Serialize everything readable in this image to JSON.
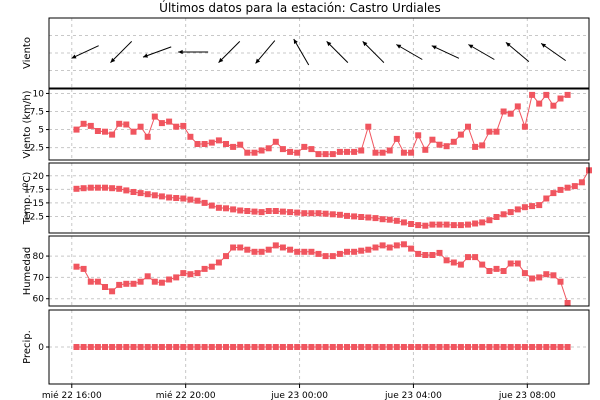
{
  "title": "Últimos datos para la estación: Castro Urdiales",
  "colors": {
    "series": "#f0555f",
    "arrow": "#000000",
    "grid": "#c8c8c8"
  },
  "chart_data": {
    "type": "line",
    "x_ticks": [
      {
        "label": "mié 22 16:00",
        "t": 0
      },
      {
        "label": "mié 22 20:00",
        "t": 240
      },
      {
        "label": "jue 23 00:00",
        "t": 480
      },
      {
        "label": "jue 23 04:00",
        "t": 720
      },
      {
        "label": "jue 23 08:00",
        "t": 960
      }
    ],
    "x_range_minutes": [
      -48,
      1090
    ],
    "x_start": "mié 22 16:10",
    "x_step_minutes": 15,
    "panels": [
      {
        "id": "viento-dir",
        "ylabel": "Viento",
        "type": "vector",
        "directions_deg": [
          245,
          225,
          250,
          270,
          225,
          220,
          330,
          315,
          315,
          300,
          295,
          300,
          310,
          305
        ]
      },
      {
        "id": "viento",
        "ylabel": "Viento (km/h)",
        "type": "line",
        "ylim": [
          1.2,
          10.2
        ],
        "yticks": [
          2.5,
          5,
          7.5,
          10
        ],
        "values": [
          5.0,
          5.8,
          5.5,
          4.8,
          4.7,
          4.3,
          5.8,
          5.7,
          4.7,
          5.4,
          4.0,
          6.8,
          5.9,
          6.1,
          5.4,
          5.5,
          4.0,
          3.0,
          3.0,
          3.2,
          3.5,
          3.0,
          2.6,
          2.9,
          1.8,
          1.8,
          2.1,
          2.4,
          3.3,
          2.3,
          1.9,
          1.8,
          2.6,
          2.3,
          1.6,
          1.6,
          1.6,
          1.9,
          1.9,
          1.9,
          2.1,
          5.4,
          1.8,
          1.8,
          2.1,
          3.7,
          1.8,
          1.8,
          4.2,
          2.2,
          3.6,
          2.9,
          2.7,
          3.3,
          4.3,
          5.4,
          2.6,
          2.8,
          4.7,
          4.7,
          7.5,
          7.2,
          8.2,
          5.4,
          9.8,
          8.6,
          9.8,
          8.3,
          9.3,
          9.8
        ]
      },
      {
        "id": "temp",
        "ylabel": "Temp. (ºC)",
        "type": "line",
        "ylim": [
          10,
          21.8
        ],
        "yticks": [
          12.5,
          15,
          17.5,
          20
        ],
        "values": [
          17.6,
          17.7,
          17.8,
          17.8,
          17.8,
          17.7,
          17.6,
          17.3,
          17.0,
          16.8,
          16.6,
          16.4,
          16.2,
          16.0,
          15.9,
          15.8,
          15.6,
          15.4,
          15.0,
          14.5,
          14.1,
          14.0,
          13.8,
          13.6,
          13.5,
          13.4,
          13.3,
          13.5,
          13.5,
          13.4,
          13.3,
          13.2,
          13.1,
          13.1,
          13.1,
          13.0,
          12.9,
          12.8,
          12.6,
          12.5,
          12.4,
          12.3,
          12.2,
          12.0,
          11.9,
          11.7,
          11.4,
          11.1,
          10.9,
          10.8,
          11.0,
          11.0,
          11.0,
          10.9,
          10.9,
          11.0,
          11.2,
          11.4,
          11.8,
          12.4,
          12.9,
          13.3,
          13.8,
          14.2,
          14.4,
          14.6,
          15.8,
          16.8,
          17.4,
          17.8,
          18.1,
          18.8,
          21.0
        ]
      },
      {
        "id": "humedad",
        "ylabel": "Humedad",
        "type": "line",
        "ylim": [
          58,
          88
        ],
        "yticks": [
          60,
          70,
          80
        ],
        "values": [
          75.0,
          74.0,
          68.0,
          68.0,
          65.5,
          63.5,
          66.5,
          67.0,
          67.0,
          68.0,
          70.5,
          68.0,
          67.5,
          69.0,
          70.0,
          72.0,
          71.5,
          72.0,
          74.0,
          75.0,
          77.0,
          80.0,
          84.0,
          84.0,
          83.0,
          82.0,
          82.0,
          83.0,
          85.0,
          84.0,
          83.0,
          82.0,
          82.0,
          82.0,
          81.0,
          80.0,
          80.0,
          81.0,
          82.0,
          82.0,
          82.5,
          83.0,
          84.0,
          85.0,
          84.0,
          85.0,
          85.5,
          83.5,
          81.0,
          80.5,
          80.5,
          81.5,
          78.0,
          77.0,
          76.0,
          79.5,
          79.5,
          76.0,
          73.0,
          74.0,
          73.0,
          76.5,
          76.5,
          72.0,
          69.5,
          70.0,
          71.5,
          71.0,
          68.0,
          58.0
        ]
      },
      {
        "id": "precip",
        "ylabel": "Precip.",
        "type": "line",
        "ylim": [
          -1,
          1
        ],
        "yticks": [
          0
        ],
        "values": [
          0,
          0,
          0,
          0,
          0,
          0,
          0,
          0,
          0,
          0,
          0,
          0,
          0,
          0,
          0,
          0,
          0,
          0,
          0,
          0,
          0,
          0,
          0,
          0,
          0,
          0,
          0,
          0,
          0,
          0,
          0,
          0,
          0,
          0,
          0,
          0,
          0,
          0,
          0,
          0,
          0,
          0,
          0,
          0,
          0,
          0,
          0,
          0,
          0,
          0,
          0,
          0,
          0,
          0,
          0,
          0,
          0,
          0,
          0,
          0,
          0,
          0,
          0,
          0,
          0,
          0,
          0,
          0,
          0,
          0
        ]
      }
    ]
  }
}
